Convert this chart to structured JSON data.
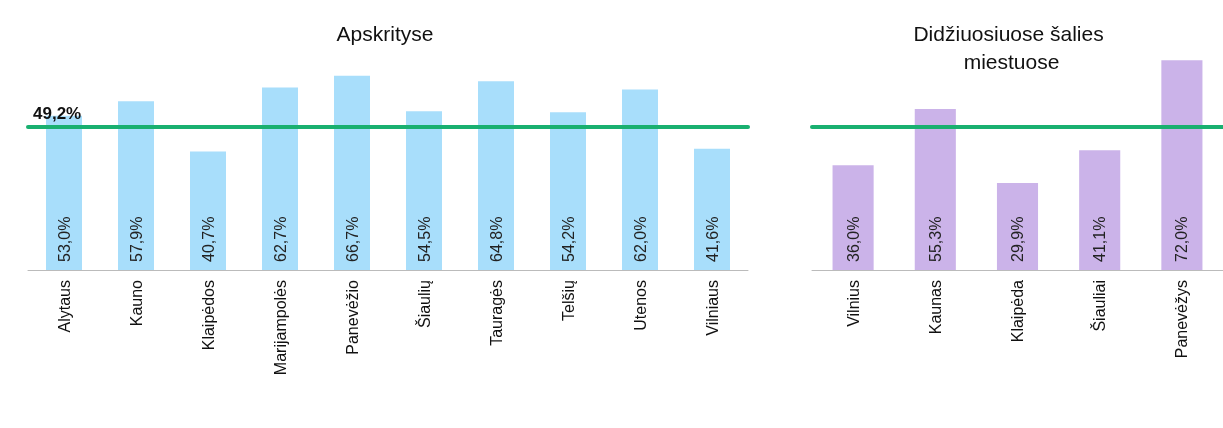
{
  "chart_data": [
    {
      "type": "bar",
      "title": "Apskrityse",
      "categories": [
        "Alytaus",
        "Kauno",
        "Klaipėdos",
        "Marijampolės",
        "Panevėžio",
        "Šiaulių",
        "Tauragės",
        "Telšių",
        "Utenos",
        "Vilniaus"
      ],
      "series": [
        {
          "color": "#a8defb",
          "values": [
            53.0,
            57.9,
            40.7,
            62.7,
            66.7,
            54.5,
            64.8,
            54.2,
            62.0,
            41.6
          ],
          "value_labels": [
            "53,0%",
            "57,9%",
            "40,7%",
            "62,7%",
            "66,7%",
            "54,5%",
            "64,8%",
            "54,2%",
            "62,0%",
            "41,6%"
          ]
        }
      ],
      "tick_labels": "x",
      "ref_lines": [
        {
          "axis": "y",
          "value": 49.2,
          "label": "49,2%",
          "color": "#19b070"
        }
      ]
    },
    {
      "type": "bar",
      "title": "Didžiuosiuose šalies miestuose",
      "categories": [
        "Vilnius",
        "Kaunas",
        "Klaipėda",
        "Šiauliai",
        "Panevėžys"
      ],
      "series": [
        {
          "color": "#cbb3e9",
          "values": [
            36.0,
            55.3,
            29.9,
            41.1,
            72.0
          ],
          "value_labels": [
            "36,0%",
            "55,3%",
            "29,9%",
            "41,1%",
            "72,0%"
          ]
        }
      ],
      "tick_labels": "x",
      "ref_lines": [
        {
          "axis": "y",
          "value": 49.2,
          "label": null,
          "color": "#19b070"
        }
      ]
    }
  ]
}
